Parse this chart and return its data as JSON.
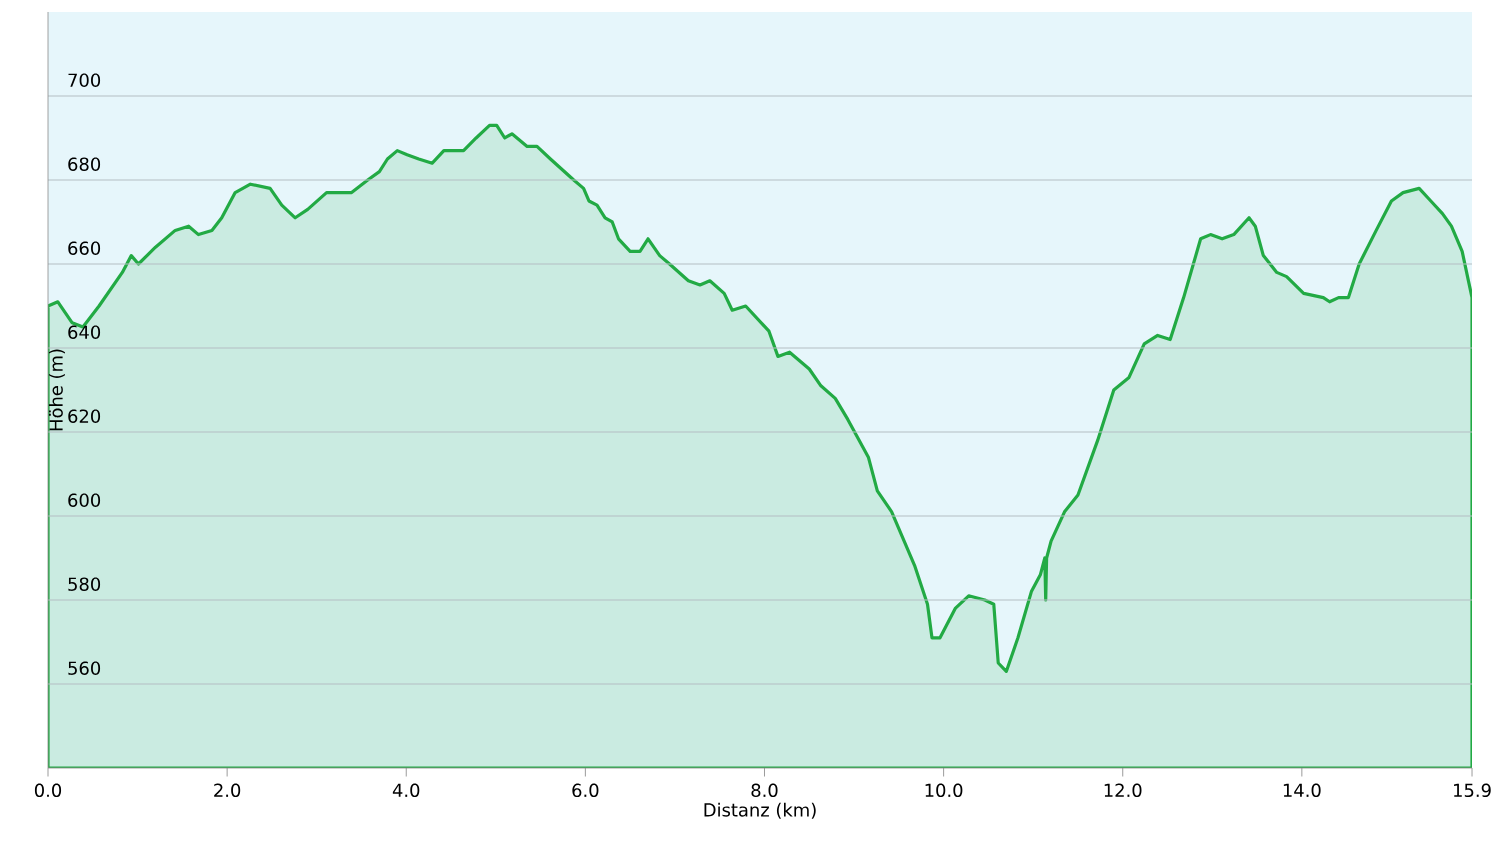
{
  "chart_data": {
    "type": "area",
    "xlabel": "Distanz  (km)",
    "ylabel": "Höhe (m)",
    "xlim": [
      0,
      15.9
    ],
    "ylim": [
      540,
      720
    ],
    "xticks": [
      {
        "value": 0,
        "label": "0.0"
      },
      {
        "value": 2,
        "label": "2.0"
      },
      {
        "value": 4,
        "label": "4.0"
      },
      {
        "value": 6,
        "label": "6.0"
      },
      {
        "value": 8,
        "label": "8.0"
      },
      {
        "value": 10,
        "label": "10.0"
      },
      {
        "value": 12,
        "label": "12.0"
      },
      {
        "value": 14,
        "label": "14.0"
      },
      {
        "value": 15.9,
        "label": "15.9"
      }
    ],
    "yticks": [
      560,
      580,
      600,
      620,
      640,
      660,
      680,
      700
    ],
    "grid": "y",
    "series": [
      {
        "color": "#22aa44",
        "x": [
          0.0,
          0.11,
          0.27,
          0.39,
          0.57,
          0.83,
          0.93,
          1.01,
          1.2,
          1.42,
          1.57,
          1.68,
          1.83,
          1.94,
          2.09,
          2.26,
          2.48,
          2.61,
          2.76,
          2.9,
          3.11,
          3.39,
          3.57,
          3.7,
          3.79,
          3.9,
          4.01,
          4.14,
          4.29,
          4.42,
          4.64,
          4.78,
          4.93,
          5.01,
          5.1,
          5.18,
          5.35,
          5.46,
          5.61,
          5.87,
          5.98,
          6.04,
          6.13,
          6.22,
          6.3,
          6.37,
          6.5,
          6.61,
          6.7,
          6.83,
          6.94,
          7.15,
          7.28,
          7.39,
          7.55,
          7.64,
          7.79,
          8.05,
          8.15,
          8.28,
          8.5,
          8.63,
          8.79,
          8.93,
          9.16,
          9.26,
          9.42,
          9.68,
          9.82,
          9.87,
          9.96,
          10.13,
          10.28,
          10.46,
          10.56,
          10.61,
          10.7,
          10.83,
          10.98,
          11.08,
          11.13,
          11.14,
          11.15,
          11.2,
          11.35,
          11.5,
          11.72,
          11.9,
          12.07,
          12.24,
          12.39,
          12.53,
          12.68,
          12.87,
          12.98,
          13.11,
          13.24,
          13.41,
          13.48,
          13.57,
          13.72,
          13.83,
          14.02,
          14.24,
          14.31,
          14.41,
          14.52,
          14.64,
          14.83,
          15.0,
          15.13,
          15.31,
          15.44,
          15.57,
          15.67,
          15.79,
          15.86,
          15.9
        ],
        "values": [
          650,
          651,
          646,
          645,
          650,
          658,
          662,
          660,
          664,
          668,
          669,
          667,
          668,
          671,
          677,
          679,
          678,
          674,
          671,
          673,
          677,
          677,
          680,
          682,
          685,
          687,
          686,
          685,
          684,
          687,
          687,
          690,
          693,
          693,
          690,
          691,
          688,
          688,
          685,
          680,
          678,
          675,
          674,
          671,
          670,
          666,
          663,
          663,
          666,
          662,
          660,
          656,
          655,
          656,
          653,
          649,
          650,
          644,
          638,
          639,
          635,
          631,
          628,
          623,
          614,
          606,
          601,
          588,
          579,
          571,
          571,
          578,
          581,
          580,
          579,
          565,
          563,
          571,
          582,
          586,
          590,
          580,
          590,
          594,
          601,
          605,
          618,
          630,
          633,
          641,
          643,
          642,
          652,
          666,
          667,
          666,
          667,
          671,
          669,
          662,
          658,
          657,
          653,
          652,
          651,
          652,
          652,
          660,
          668,
          675,
          677,
          678,
          675,
          672,
          669,
          663,
          656,
          652
        ]
      }
    ]
  }
}
